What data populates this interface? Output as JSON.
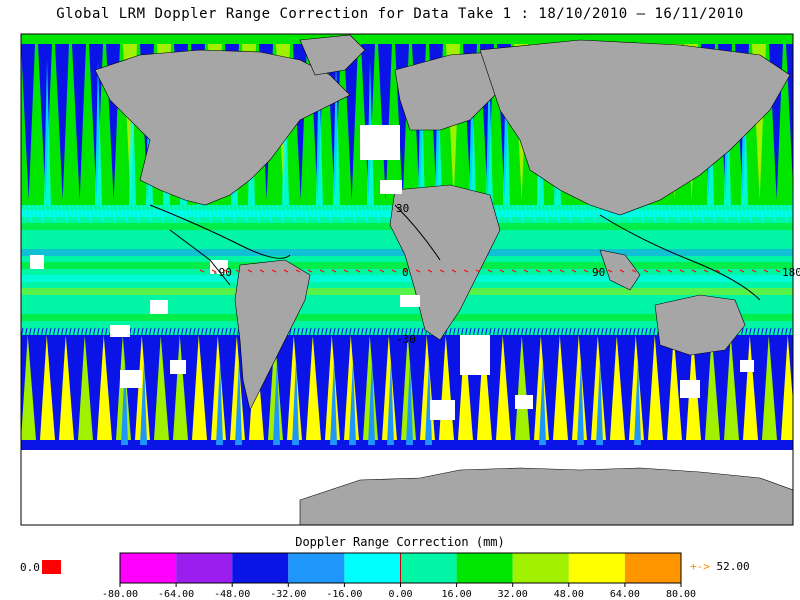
{
  "title": "Global LRM Doppler Range Correction for Data Take 1 : 18/10/2010 – 16/11/2010",
  "map": {
    "lon_labels": [
      "-90",
      "0",
      "90",
      "180"
    ],
    "lat_labels": [
      "30",
      "-30"
    ],
    "colors": {
      "land": "#a6a6a6",
      "nodata": "#ffffff",
      "frame": "#000000",
      "coast": "#000000",
      "grid_label": "#ff0000"
    }
  },
  "colorbar": {
    "title": "Doppler Range Correction (mm)",
    "ticks": [
      "-80.00",
      "-64.00",
      "-48.00",
      "-32.00",
      "-16.00",
      "0.00",
      "16.00",
      "32.00",
      "48.00",
      "64.00",
      "80.00"
    ],
    "bins": [
      "#ff00ff",
      "#9b1eef",
      "#0a14e6",
      "#1e96fa",
      "#00ffff",
      "#00f5a5",
      "#00e600",
      "#a0f000",
      "#ffff00",
      "#ff9600"
    ],
    "center_line_color": "#cc0000"
  },
  "nodata_indicator": {
    "label": "0.0",
    "color": "#ff0000"
  },
  "max_indicator": {
    "arrow": "+->",
    "value": "52.00"
  }
}
